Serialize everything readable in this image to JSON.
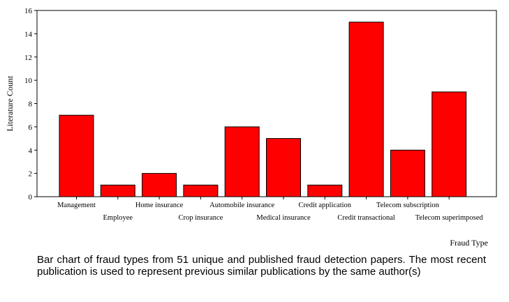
{
  "chart_data": {
    "type": "bar",
    "title": "",
    "xlabel": "Fraud Type",
    "ylabel": "Literature Count",
    "ylim": [
      0,
      16
    ],
    "yticks": [
      0,
      2,
      4,
      6,
      8,
      10,
      12,
      14,
      16
    ],
    "grid": false,
    "categories": [
      "Management",
      "Employee",
      "Home insurance",
      "Crop insurance",
      "Automobile insurance",
      "Medical insurance",
      "Credit application",
      "Credit transactional",
      "Telecom subscription",
      "Telecom superimposed"
    ],
    "values": [
      7,
      1,
      2,
      1,
      6,
      5,
      1,
      15,
      4,
      9
    ],
    "bar_color": "#ff0000"
  },
  "caption": "Bar chart of fraud types from 51 unique and published fraud detection papers. The most recent publication is used to represent previous similar publications by the same author(s)"
}
